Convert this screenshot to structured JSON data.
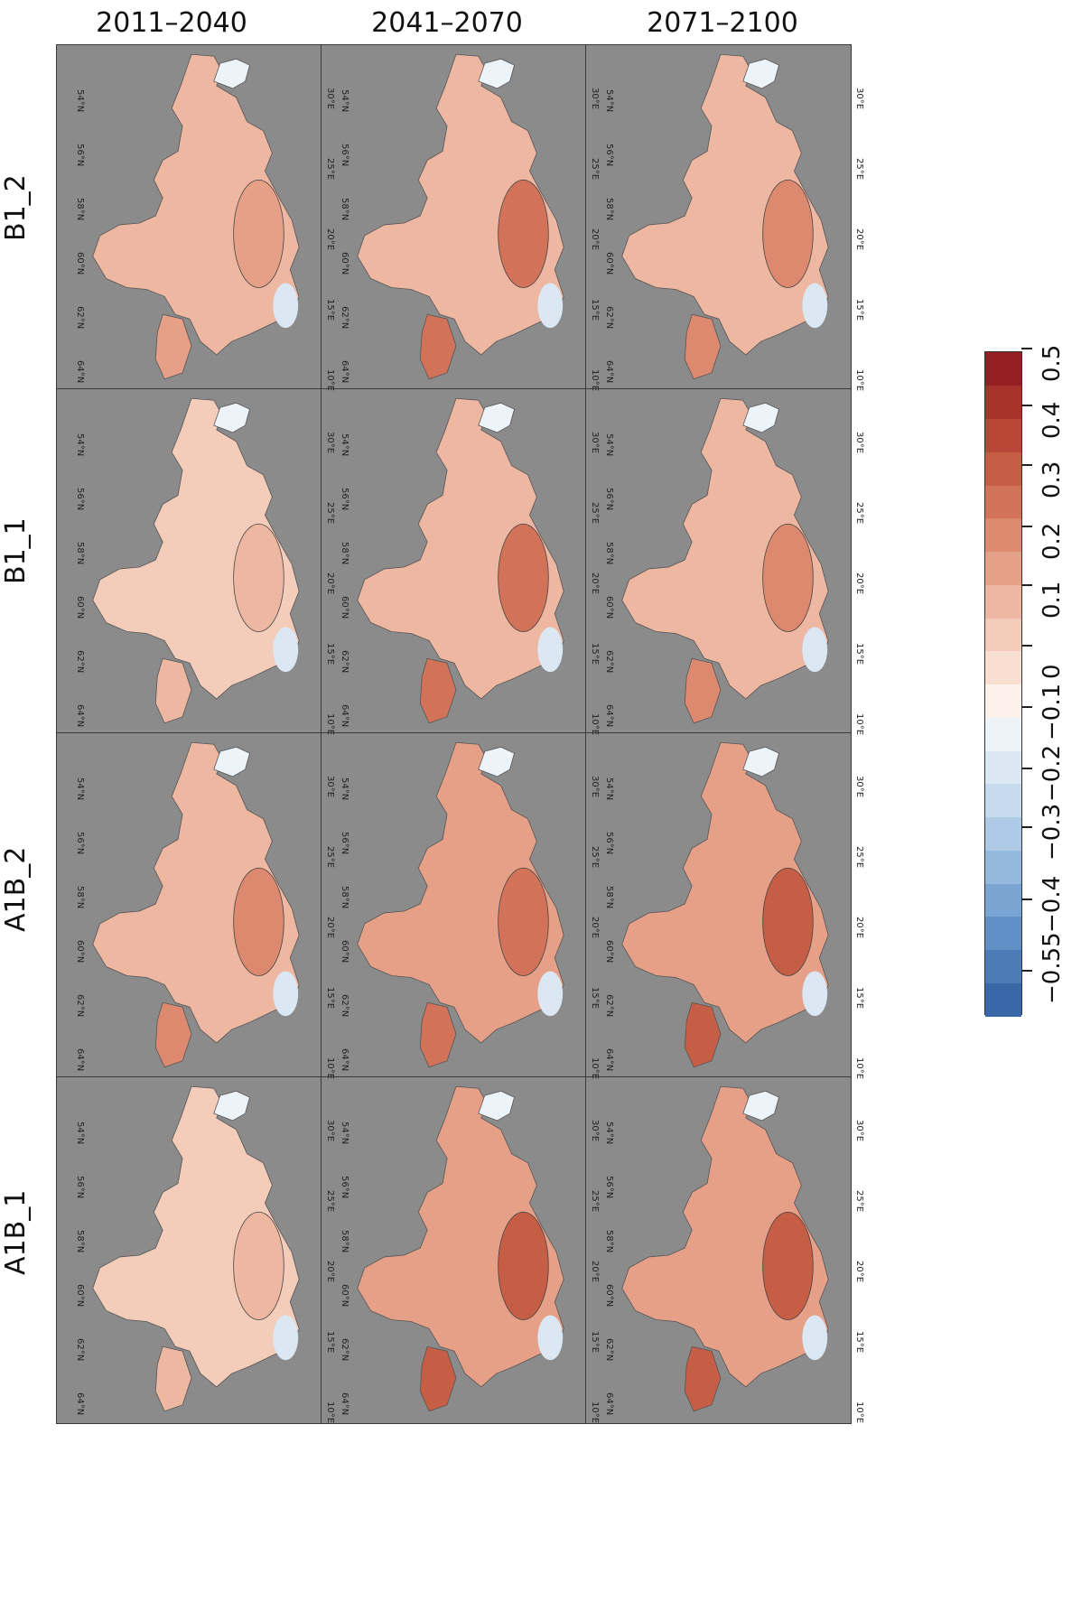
{
  "col_headers": [
    "2011–2040",
    "2041–2070",
    "2071–2100"
  ],
  "row_labels": [
    "B1_2",
    "B1_1",
    "A1B_2",
    "A1B_1"
  ],
  "lat_ticks": [
    "64°N",
    "62°N",
    "60°N",
    "58°N",
    "56°N",
    "54°N"
  ],
  "lon_ticks": [
    "10°E",
    "15°E",
    "20°E",
    "25°E",
    "30°E"
  ],
  "colorbar": {
    "labels": [
      "−0.55",
      "−0.4",
      "−0.3",
      "−0.2",
      "−0.1",
      "0",
      "0.1",
      "0.2",
      "0.3",
      "0.4",
      "0.5"
    ],
    "colors_from_min": [
      "#3a67a8",
      "#4c7bb8",
      "#6290c6",
      "#7aa4d2",
      "#95b8dd",
      "#aecae6",
      "#c6dbee",
      "#dbe8f4",
      "#ecf3f9",
      "#fdf1ec",
      "#f9dfd2",
      "#f4ccba",
      "#eeb7a1",
      "#e6a088",
      "#dc8970",
      "#d27359",
      "#c65d45",
      "#b84737",
      "#a8332b",
      "#951f22"
    ],
    "colors_note": "blue negative, red positive"
  },
  "panels": [
    {
      "row": 0,
      "col": 0,
      "intensity": 0.45
    },
    {
      "row": 0,
      "col": 1,
      "intensity": 0.6
    },
    {
      "row": 0,
      "col": 2,
      "intensity": 0.55
    },
    {
      "row": 1,
      "col": 0,
      "intensity": 0.3
    },
    {
      "row": 1,
      "col": 1,
      "intensity": 0.6
    },
    {
      "row": 1,
      "col": 2,
      "intensity": 0.5
    },
    {
      "row": 2,
      "col": 0,
      "intensity": 0.5
    },
    {
      "row": 2,
      "col": 1,
      "intensity": 0.7
    },
    {
      "row": 2,
      "col": 2,
      "intensity": 0.75
    },
    {
      "row": 3,
      "col": 0,
      "intensity": 0.25
    },
    {
      "row": 3,
      "col": 1,
      "intensity": 0.8
    },
    {
      "row": 3,
      "col": 2,
      "intensity": 0.8
    }
  ]
}
